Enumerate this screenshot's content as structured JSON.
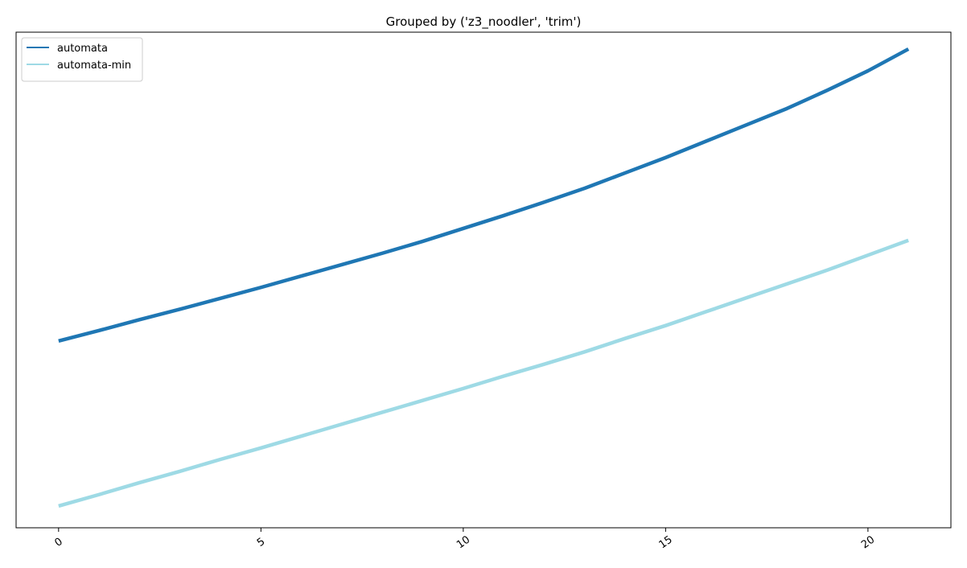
{
  "chart_data": {
    "type": "line",
    "title": "Grouped by ('z3_noodler', 'trim')",
    "xlabel": "",
    "ylabel": "",
    "xlim": [
      -1.05,
      22.05
    ],
    "ylim": [
      0,
      1
    ],
    "x_ticks": [
      0,
      5,
      10,
      15,
      20
    ],
    "y_ticks": [],
    "grid": false,
    "legend_position": "upper-left",
    "x": [
      0,
      1,
      2,
      3,
      4,
      5,
      6,
      7,
      8,
      9,
      10,
      11,
      12,
      13,
      14,
      15,
      16,
      17,
      18,
      19,
      20,
      21
    ],
    "series": [
      {
        "name": "automata",
        "color": "#1f77b4",
        "values": [
          0.377,
          0.398,
          0.42,
          0.441,
          0.463,
          0.485,
          0.508,
          0.531,
          0.554,
          0.578,
          0.604,
          0.63,
          0.657,
          0.685,
          0.716,
          0.747,
          0.78,
          0.813,
          0.846,
          0.883,
          0.922,
          0.966
        ]
      },
      {
        "name": "automata-min",
        "color": "#9edae5",
        "values": [
          0.044,
          0.067,
          0.091,
          0.114,
          0.138,
          0.161,
          0.185,
          0.209,
          0.233,
          0.257,
          0.281,
          0.306,
          0.33,
          0.355,
          0.382,
          0.408,
          0.436,
          0.464,
          0.492,
          0.52,
          0.55,
          0.58
        ]
      }
    ]
  }
}
